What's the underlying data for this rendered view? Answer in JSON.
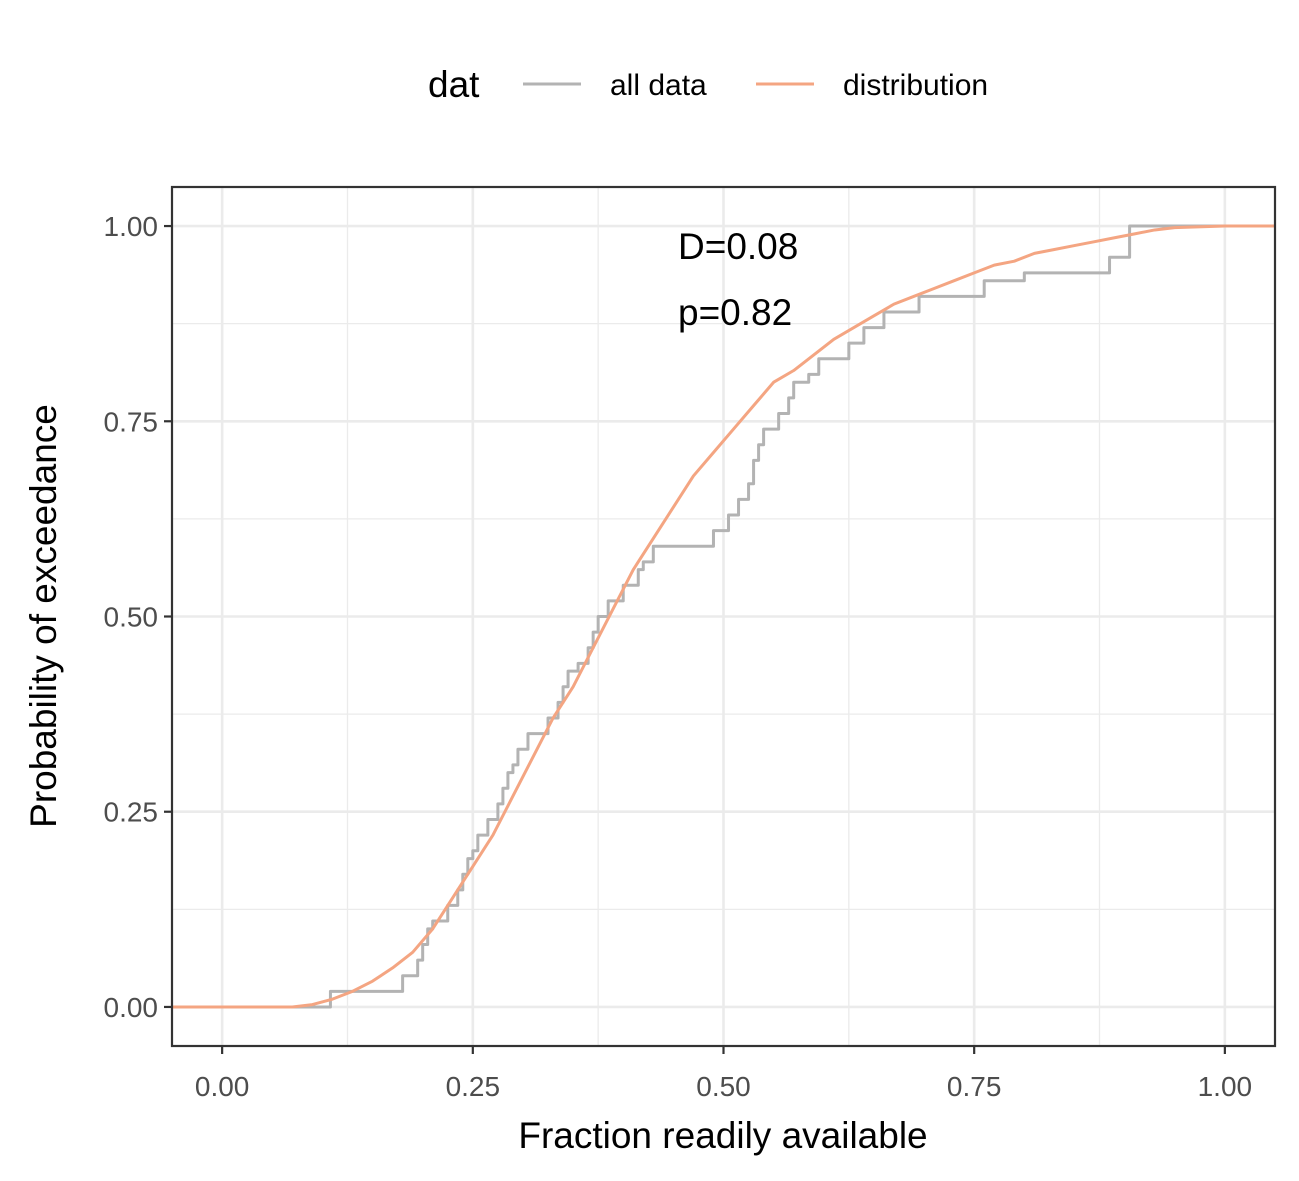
{
  "legend": {
    "title": "dat",
    "items": [
      {
        "label": "all data",
        "color": "#b3b3b3"
      },
      {
        "label": "distribution",
        "color": "#f4a582"
      }
    ]
  },
  "annotations": {
    "d_text": "D=0.08",
    "p_text": "p=0.82"
  },
  "chart_data": {
    "type": "line",
    "xlabel": "Fraction readily available",
    "ylabel": "Probability of exceedance",
    "xlim": [
      -0.05,
      1.05
    ],
    "ylim": [
      -0.05,
      1.05
    ],
    "xticks": [
      0,
      0.25,
      0.5,
      0.75,
      1
    ],
    "xtick_labels": [
      "0.00",
      "0.25",
      "0.50",
      "0.75",
      "1.00"
    ],
    "yticks": [
      0,
      0.25,
      0.5,
      0.75,
      1
    ],
    "ytick_labels": [
      "0.00",
      "0.25",
      "0.50",
      "0.75",
      "1.00"
    ],
    "grid": true,
    "legend_position": "top",
    "series": [
      {
        "name": "all data",
        "color": "#b3b3b3",
        "step": true,
        "x": [
          -0.05,
          0.108,
          0.18,
          0.195,
          0.2,
          0.205,
          0.21,
          0.225,
          0.235,
          0.24,
          0.245,
          0.25,
          0.255,
          0.265,
          0.275,
          0.28,
          0.285,
          0.29,
          0.295,
          0.3,
          0.305,
          0.325,
          0.335,
          0.34,
          0.345,
          0.355,
          0.365,
          0.37,
          0.375,
          0.385,
          0.4,
          0.415,
          0.42,
          0.425,
          0.43,
          0.46,
          0.49,
          0.505,
          0.515,
          0.525,
          0.53,
          0.535,
          0.54,
          0.555,
          0.565,
          0.57,
          0.585,
          0.595,
          0.625,
          0.64,
          0.66,
          0.695,
          0.74,
          0.76,
          0.8,
          0.885,
          0.905,
          1.05
        ],
        "y": [
          0,
          0.02,
          0.04,
          0.06,
          0.08,
          0.1,
          0.11,
          0.13,
          0.15,
          0.17,
          0.19,
          0.2,
          0.22,
          0.24,
          0.26,
          0.28,
          0.3,
          0.31,
          0.33,
          0.33,
          0.35,
          0.37,
          0.39,
          0.41,
          0.43,
          0.44,
          0.46,
          0.48,
          0.5,
          0.52,
          0.54,
          0.56,
          0.57,
          0.57,
          0.59,
          0.59,
          0.61,
          0.63,
          0.65,
          0.67,
          0.7,
          0.72,
          0.74,
          0.76,
          0.78,
          0.8,
          0.81,
          0.83,
          0.85,
          0.87,
          0.89,
          0.91,
          0.91,
          0.93,
          0.94,
          0.96,
          1.0,
          1.0
        ]
      },
      {
        "name": "distribution",
        "color": "#f4a582",
        "step": false,
        "x": [
          -0.05,
          0.07,
          0.09,
          0.11,
          0.13,
          0.15,
          0.17,
          0.19,
          0.21,
          0.23,
          0.25,
          0.27,
          0.29,
          0.31,
          0.33,
          0.35,
          0.37,
          0.39,
          0.41,
          0.43,
          0.45,
          0.47,
          0.49,
          0.51,
          0.53,
          0.55,
          0.57,
          0.59,
          0.61,
          0.63,
          0.65,
          0.67,
          0.69,
          0.71,
          0.73,
          0.75,
          0.77,
          0.79,
          0.81,
          0.83,
          0.85,
          0.87,
          0.89,
          0.91,
          0.93,
          0.95,
          1.0,
          1.05
        ],
        "y": [
          0,
          0,
          0.003,
          0.01,
          0.02,
          0.033,
          0.05,
          0.07,
          0.1,
          0.14,
          0.18,
          0.22,
          0.27,
          0.32,
          0.37,
          0.41,
          0.46,
          0.51,
          0.56,
          0.6,
          0.64,
          0.68,
          0.71,
          0.74,
          0.77,
          0.8,
          0.815,
          0.835,
          0.855,
          0.87,
          0.885,
          0.9,
          0.91,
          0.92,
          0.93,
          0.94,
          0.95,
          0.955,
          0.965,
          0.97,
          0.975,
          0.98,
          0.985,
          0.99,
          0.995,
          0.998,
          1.0,
          1.0
        ]
      }
    ]
  }
}
